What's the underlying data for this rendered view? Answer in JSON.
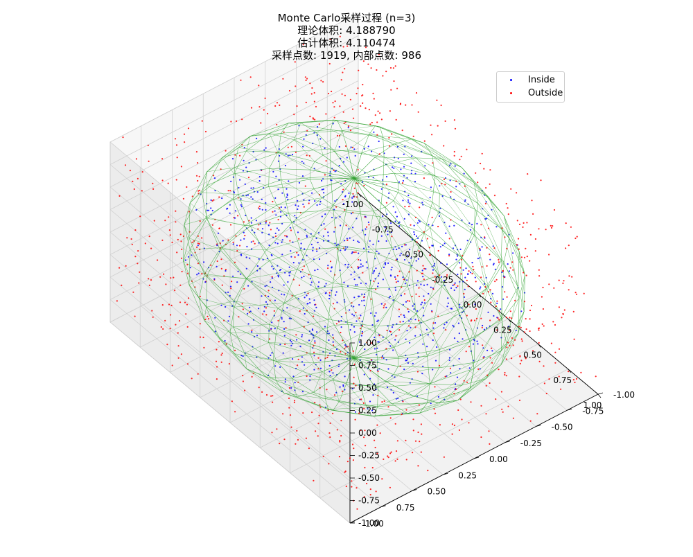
{
  "title": {
    "line1": "Monte Carlo采样过程 (n=3)",
    "line2": "理论体积: 4.188790",
    "line3": "估计体积: 4.110474",
    "line4": "采样点数: 1919, 内部点数: 986"
  },
  "legend": {
    "placement": "upper-right",
    "items": [
      {
        "label": "Inside",
        "color": "#0000ff"
      },
      {
        "label": "Outside",
        "color": "#ff0000"
      }
    ]
  },
  "chart_data": {
    "type": "scatter",
    "projection": "3d",
    "n": 3,
    "theoretical_volume": 4.18879,
    "estimated_volume": 4.110474,
    "sample_count": 1919,
    "inside_count": 986,
    "xlim": [
      -1,
      1
    ],
    "ylim": [
      -1,
      1
    ],
    "zlim": [
      -1,
      1
    ],
    "grid": true,
    "x_ticks": [
      "-1.00",
      "-0.75",
      "-0.50",
      "-0.25",
      "0.00",
      "0.25",
      "0.50",
      "0.75",
      "1.00"
    ],
    "y_ticks": [
      "-1.00",
      "-0.75",
      "-0.50",
      "-0.25",
      "0.00",
      "0.25",
      "0.50",
      "0.75",
      "1.00"
    ],
    "z_ticks": [
      "-1.00",
      "-0.75",
      "-0.50",
      "-0.25",
      "0.00",
      "0.25",
      "0.50",
      "0.75",
      "1.00"
    ],
    "series": [
      {
        "name": "Inside",
        "color": "#0000ff"
      },
      {
        "name": "Outside",
        "color": "#ff0000"
      }
    ],
    "wireframe": {
      "shape": "unit sphere",
      "color": "#2ca02c"
    }
  }
}
